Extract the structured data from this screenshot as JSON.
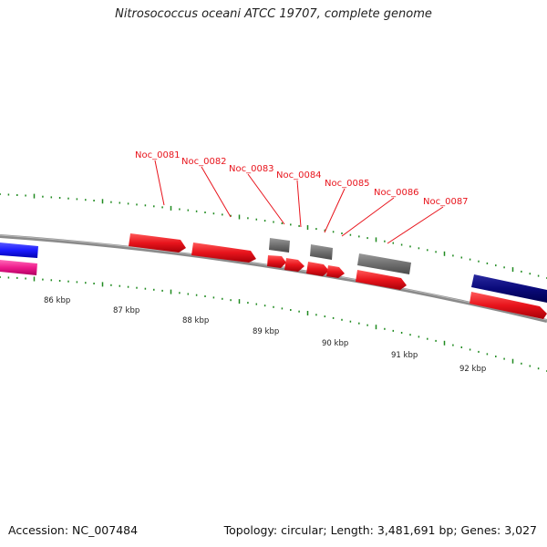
{
  "title": "Nitrosococcus oceani ATCC 19707, complete genome",
  "footer": {
    "accession": "Accession: NC_007484",
    "stats": "Topology: circular; Length: 3,481,691 bp; Genes: 3,027"
  },
  "colors": {
    "backbone": "#8a8a8a",
    "tick": "#1f8a1f",
    "gene_red": "#e8141c",
    "gene_gray": "#6f6f6f",
    "gene_blue": "#1a1aff",
    "gene_navy": "#0a0a7a",
    "gene_pink": "#ee1b8c",
    "label": "#e8141c"
  },
  "gene_labels": [
    "Noc_0081",
    "Noc_0082",
    "Noc_0083",
    "Noc_0084",
    "Noc_0085",
    "Noc_0086",
    "Noc_0087"
  ],
  "kbp_labels": [
    "86 kbp",
    "87 kbp",
    "88 kbp",
    "89 kbp",
    "90 kbp",
    "91 kbp",
    "92 kbp"
  ]
}
